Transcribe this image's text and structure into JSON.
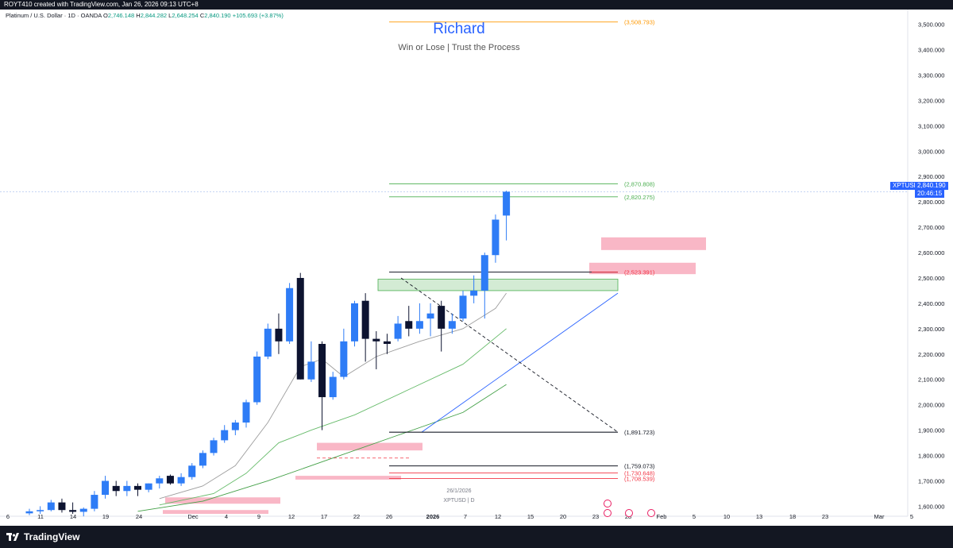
{
  "header": {
    "top_text": "ROYT410 created with TradingView.com, Jan 26, 2026 09:13 UTC+8",
    "symbol_desc": "Platinum / U.S. Dollar · 1D · OANDA",
    "o_label": "O",
    "o_value": "2,746.148",
    "h_label": "H",
    "h_value": "2,844.282",
    "l_label": "L",
    "l_value": "2,648.254",
    "c_label": "C",
    "c_value": "2,840.190",
    "change": "+105.693 (+3.87%)"
  },
  "watermark": {
    "title": "Richard",
    "subtitle": "Win or Lose | Trust the Process",
    "date": "26/1/2026",
    "symbol": "XPTUSD | D"
  },
  "price_tag": {
    "symbol": "XPTUSD",
    "price": "2,840.190",
    "countdown": "20:46:15"
  },
  "footer": {
    "brand": "TradingView",
    "logo_icon": "tradingview-logo-icon"
  },
  "colors": {
    "up": "#2e7cf6",
    "down": "#0d1330",
    "zone_green": "#c8e6c9",
    "zone_red": "#f8a5b8",
    "level_red": "#f23645",
    "level_green": "#4caf50",
    "level_orange": "#ff9800",
    "accent": "#2962ff"
  },
  "chart_data": {
    "type": "candlestick",
    "ylim": [
      1570,
      3530
    ],
    "y_ticks": [
      "1,600.000",
      "1,700.000",
      "1,800.000",
      "1,900.000",
      "2,000.000",
      "2,100.000",
      "2,200.000",
      "2,300.000",
      "2,400.000",
      "2,500.000",
      "2,600.000",
      "2,700.000",
      "2,800.000",
      "2,900.000",
      "3,000.000",
      "3,100.000",
      "3,200.000",
      "3,300.000",
      "3,400.000",
      "3,500.000"
    ],
    "x_ticks": [
      "6",
      "11",
      "14",
      "19",
      "24",
      "Dec",
      "4",
      "9",
      "12",
      "17",
      "22",
      "26",
      "2026",
      "7",
      "12",
      "15",
      "20",
      "23",
      "28",
      "Feb",
      "5",
      "10",
      "13",
      "18",
      "23",
      "Mar",
      "5"
    ],
    "candles": [
      {
        "o": 1572,
        "h": 1590,
        "l": 1565,
        "c": 1580
      },
      {
        "o": 1580,
        "h": 1600,
        "l": 1570,
        "c": 1585
      },
      {
        "o": 1585,
        "h": 1625,
        "l": 1580,
        "c": 1615
      },
      {
        "o": 1615,
        "h": 1630,
        "l": 1575,
        "c": 1585
      },
      {
        "o": 1585,
        "h": 1615,
        "l": 1570,
        "c": 1578
      },
      {
        "o": 1578,
        "h": 1595,
        "l": 1560,
        "c": 1590
      },
      {
        "o": 1590,
        "h": 1660,
        "l": 1580,
        "c": 1645
      },
      {
        "o": 1645,
        "h": 1720,
        "l": 1630,
        "c": 1700
      },
      {
        "o": 1680,
        "h": 1700,
        "l": 1640,
        "c": 1660
      },
      {
        "o": 1660,
        "h": 1700,
        "l": 1640,
        "c": 1680
      },
      {
        "o": 1680,
        "h": 1690,
        "l": 1640,
        "c": 1665
      },
      {
        "o": 1665,
        "h": 1690,
        "l": 1655,
        "c": 1690
      },
      {
        "o": 1690,
        "h": 1720,
        "l": 1670,
        "c": 1710
      },
      {
        "o": 1720,
        "h": 1725,
        "l": 1685,
        "c": 1690
      },
      {
        "o": 1690,
        "h": 1730,
        "l": 1680,
        "c": 1715
      },
      {
        "o": 1715,
        "h": 1770,
        "l": 1705,
        "c": 1760
      },
      {
        "o": 1760,
        "h": 1820,
        "l": 1750,
        "c": 1810
      },
      {
        "o": 1810,
        "h": 1870,
        "l": 1800,
        "c": 1860
      },
      {
        "o": 1860,
        "h": 1920,
        "l": 1850,
        "c": 1900
      },
      {
        "o": 1900,
        "h": 1940,
        "l": 1880,
        "c": 1930
      },
      {
        "o": 1930,
        "h": 2020,
        "l": 1910,
        "c": 2010
      },
      {
        "o": 2010,
        "h": 2210,
        "l": 2000,
        "c": 2190
      },
      {
        "o": 2190,
        "h": 2320,
        "l": 2180,
        "c": 2300
      },
      {
        "o": 2300,
        "h": 2360,
        "l": 2200,
        "c": 2250
      },
      {
        "o": 2250,
        "h": 2480,
        "l": 2240,
        "c": 2460
      },
      {
        "o": 2500,
        "h": 2520,
        "l": 2100,
        "c": 2100
      },
      {
        "o": 2100,
        "h": 2250,
        "l": 2090,
        "c": 2170
      },
      {
        "o": 2240,
        "h": 2250,
        "l": 1900,
        "c": 2030
      },
      {
        "o": 2030,
        "h": 2130,
        "l": 2020,
        "c": 2110
      },
      {
        "o": 2110,
        "h": 2300,
        "l": 2100,
        "c": 2250
      },
      {
        "o": 2250,
        "h": 2410,
        "l": 2230,
        "c": 2400
      },
      {
        "o": 2410,
        "h": 2440,
        "l": 2170,
        "c": 2260
      },
      {
        "o": 2260,
        "h": 2290,
        "l": 2140,
        "c": 2250
      },
      {
        "o": 2250,
        "h": 2280,
        "l": 2200,
        "c": 2240
      },
      {
        "o": 2260,
        "h": 2350,
        "l": 2250,
        "c": 2320
      },
      {
        "o": 2330,
        "h": 2390,
        "l": 2270,
        "c": 2300
      },
      {
        "o": 2300,
        "h": 2400,
        "l": 2280,
        "c": 2330
      },
      {
        "o": 2340,
        "h": 2400,
        "l": 2270,
        "c": 2360
      },
      {
        "o": 2390,
        "h": 2410,
        "l": 2210,
        "c": 2300
      },
      {
        "o": 2300,
        "h": 2360,
        "l": 2280,
        "c": 2330
      },
      {
        "o": 2340,
        "h": 2450,
        "l": 2330,
        "c": 2430
      },
      {
        "o": 2430,
        "h": 2510,
        "l": 2400,
        "c": 2450
      },
      {
        "o": 2450,
        "h": 2600,
        "l": 2340,
        "c": 2590
      },
      {
        "o": 2590,
        "h": 2750,
        "l": 2560,
        "c": 2730
      },
      {
        "o": 2746,
        "h": 2844,
        "l": 2648,
        "c": 2840
      }
    ],
    "levels": [
      {
        "label": "(3,508.793)",
        "value": 3509,
        "color": "#ff9800"
      },
      {
        "label": "(2,870.808)",
        "value": 2871,
        "color": "#4caf50"
      },
      {
        "label": "(2,820.275)",
        "value": 2820,
        "color": "#4caf50"
      },
      {
        "label": "(2,523.391)",
        "value": 2523,
        "color": "#f23645"
      },
      {
        "label": "(1,891.723)",
        "value": 1892,
        "color": "#131722"
      },
      {
        "label": "(1,759.073)",
        "value": 1759,
        "color": "#131722"
      },
      {
        "label": "(1,730.648)",
        "value": 1731,
        "color": "#f23645"
      },
      {
        "label": "(1,708.539)",
        "value": 1709,
        "color": "#f23645"
      }
    ],
    "grid": false
  }
}
